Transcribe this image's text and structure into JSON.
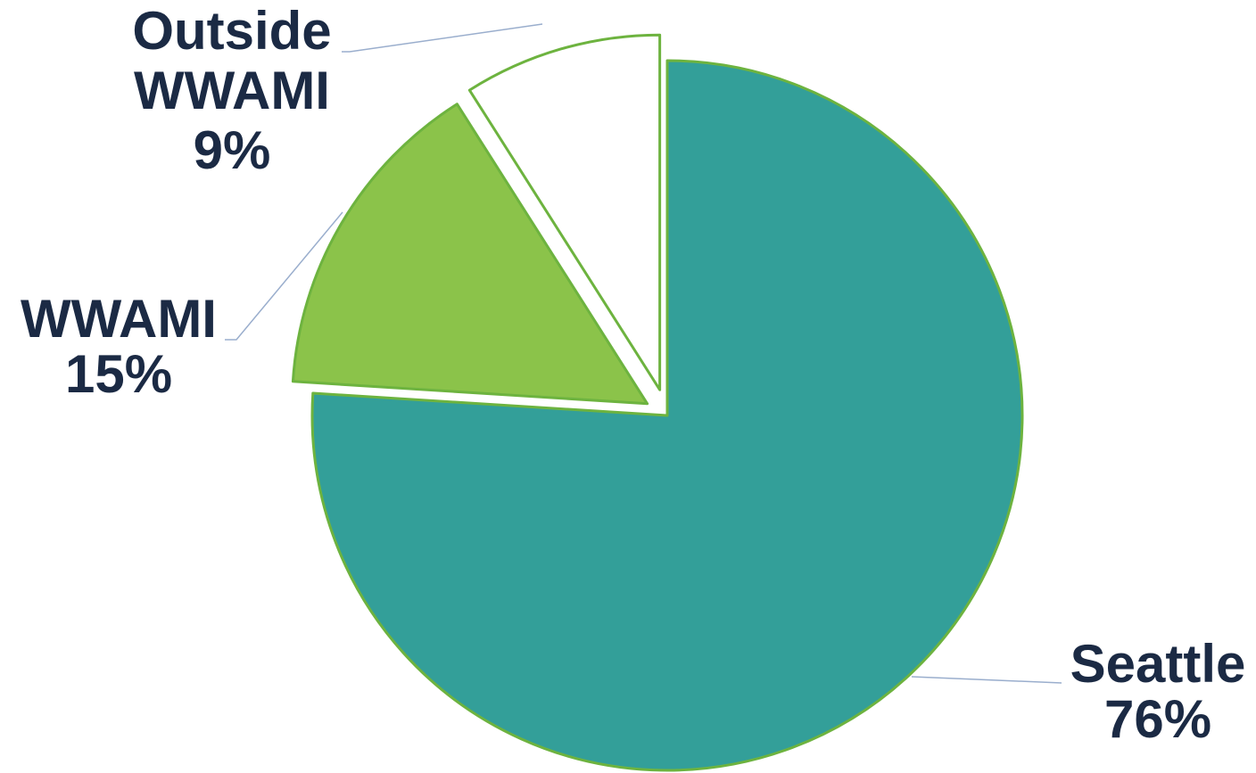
{
  "chart_data": {
    "type": "pie",
    "title": "",
    "slices": [
      {
        "key": "seattle",
        "label_lines": [
          "Seattle"
        ],
        "value": 76,
        "value_label": "76%",
        "color": "#339f99"
      },
      {
        "key": "wwami",
        "label_lines": [
          "WWAMI"
        ],
        "value": 15,
        "value_label": "15%",
        "color": "#8bc34a"
      },
      {
        "key": "outside",
        "label_lines": [
          "Outside",
          "WWAMI"
        ],
        "value": 9,
        "value_label": "9%",
        "color": "#ffffff"
      }
    ],
    "start_angle": "12 o'clock",
    "direction": "clockwise",
    "exploded": true,
    "outline_color": "#6db33f",
    "leader_line_color": "#9aaecd",
    "label_color": "#1b2a44",
    "legend": "none"
  }
}
